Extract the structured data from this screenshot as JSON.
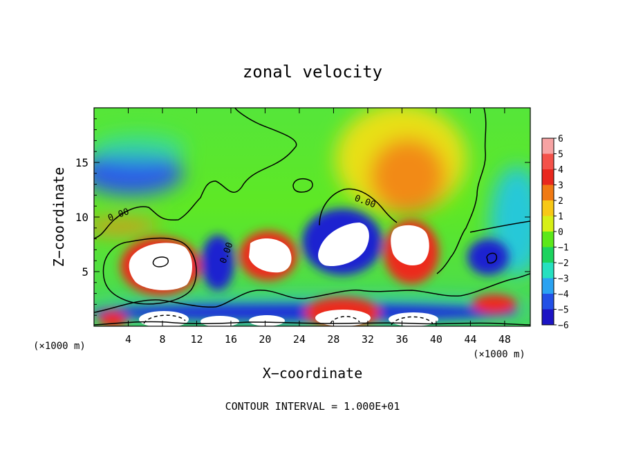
{
  "chart_data": {
    "type": "heatmap",
    "title": "zonal velocity",
    "xlabel": "X−coordinate",
    "ylabel": "Z−coordinate",
    "x_unit_left": "(×1000 m)",
    "x_unit_right": "(×1000 m)",
    "footer": "CONTOUR INTERVAL = 1.000E+01",
    "xlim": [
      0,
      51
    ],
    "ylim": [
      0,
      20
    ],
    "x_ticks": [
      4,
      8,
      12,
      16,
      20,
      24,
      28,
      32,
      36,
      40,
      44,
      48
    ],
    "y_ticks": [
      5,
      10,
      15
    ],
    "contour_labels": [
      "0.00",
      "0.00",
      "0.00"
    ],
    "colorbar": {
      "min": -6,
      "max": 6,
      "ticks": [
        6,
        5,
        4,
        3,
        2,
        1,
        0,
        -1,
        -2,
        -3,
        -4,
        -5,
        -6
      ],
      "tick_labels": [
        "6",
        "5",
        "4",
        "3",
        "2",
        "1",
        "0",
        "−1",
        "−2",
        "−3",
        "−4",
        "−5",
        "−6"
      ],
      "colors": [
        "#f7a3a3",
        "#f4524a",
        "#e8281e",
        "#f07a14",
        "#f7c816",
        "#d6ef16",
        "#5ce81a",
        "#1cd35e",
        "#26e0c0",
        "#2aa2f2",
        "#2250e6",
        "#1c14c4",
        "#7010a8"
      ],
      "saturation": "values above 6 drawn white, below -6 drawn white"
    },
    "grid": false,
    "legend": "colorbar right",
    "features": [
      {
        "kind": "max",
        "x": 7.5,
        "z": 5.5,
        "value": 10
      },
      {
        "kind": "max",
        "x": 19.5,
        "z": 6.8,
        "value": 8
      },
      {
        "kind": "max",
        "x": 29,
        "z": 7.5,
        "value": -8
      },
      {
        "kind": "max",
        "x": 35.5,
        "z": 6.7,
        "value": 9
      },
      {
        "kind": "max",
        "x": 14.5,
        "z": 5,
        "value": -7
      },
      {
        "kind": "max",
        "x": 46,
        "z": 6.2,
        "value": -6
      },
      {
        "kind": "max",
        "x": 3,
        "z": 13.5,
        "value": -4
      },
      {
        "kind": "max",
        "x": 35,
        "z": 14.5,
        "value": 3.5
      },
      {
        "kind": "max",
        "x": 8.5,
        "z": 1,
        "value": 9
      },
      {
        "kind": "max",
        "x": 28,
        "z": 1.3,
        "value": 7
      },
      {
        "kind": "max",
        "x": 37,
        "z": 1,
        "value": 8
      },
      {
        "kind": "max",
        "x": 46,
        "z": 1.8,
        "value": 5
      }
    ]
  }
}
